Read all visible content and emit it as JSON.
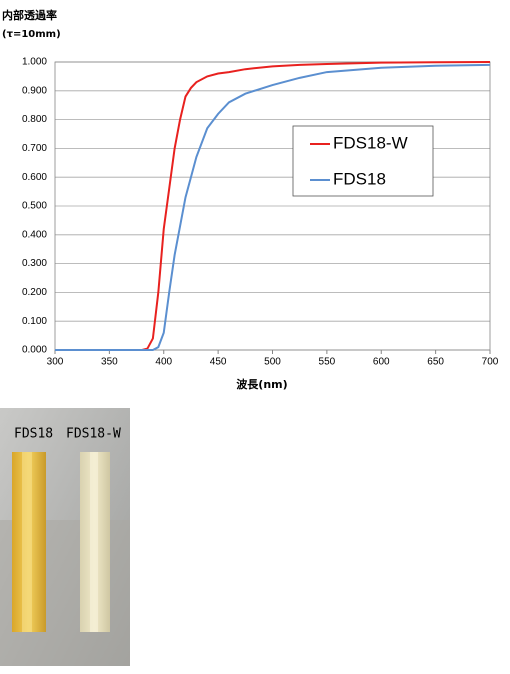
{
  "chart_data": {
    "type": "line",
    "title": "内部透過率",
    "subtitle": "(τ=10mm)",
    "x_label": "波長(nm)",
    "x": [
      300,
      350,
      380,
      385,
      390,
      395,
      400,
      405,
      410,
      415,
      420,
      425,
      430,
      440,
      450,
      460,
      475,
      500,
      525,
      550,
      600,
      650,
      700
    ],
    "series": [
      {
        "name": "FDS18-W",
        "color": "#e8211f",
        "values": [
          0,
          0,
          0,
          0.005,
          0.04,
          0.2,
          0.42,
          0.56,
          0.7,
          0.8,
          0.88,
          0.91,
          0.93,
          0.95,
          0.96,
          0.965,
          0.975,
          0.985,
          0.99,
          0.993,
          0.998,
          0.999,
          1.0
        ]
      },
      {
        "name": "FDS18",
        "color": "#5b8fd0",
        "values": [
          0,
          0,
          0,
          0,
          0,
          0.01,
          0.06,
          0.2,
          0.33,
          0.43,
          0.53,
          0.6,
          0.67,
          0.77,
          0.82,
          0.86,
          0.89,
          0.92,
          0.945,
          0.965,
          0.98,
          0.987,
          0.99
        ]
      }
    ],
    "xlim": [
      300,
      700
    ],
    "xticks": [
      300,
      350,
      400,
      450,
      500,
      550,
      600,
      650,
      700
    ],
    "ylim": [
      0,
      1
    ],
    "yticks": [
      {
        "value": 0,
        "label": "0.000"
      },
      {
        "value": 0.1,
        "label": "0.100"
      },
      {
        "value": 0.2,
        "label": "0.200"
      },
      {
        "value": 0.3,
        "label": "0.300"
      },
      {
        "value": 0.4,
        "label": "0.400"
      },
      {
        "value": 0.5,
        "label": "0.500"
      },
      {
        "value": 0.6,
        "label": "0.600"
      },
      {
        "value": 0.7,
        "label": "0.700"
      },
      {
        "value": 0.8,
        "label": "0.800"
      },
      {
        "value": 0.9,
        "label": "0.900"
      },
      {
        "value": 1,
        "label": "1.000"
      }
    ],
    "grid": true
  },
  "photo": {
    "labels": [
      "FDS18",
      "FDS18-W"
    ]
  }
}
